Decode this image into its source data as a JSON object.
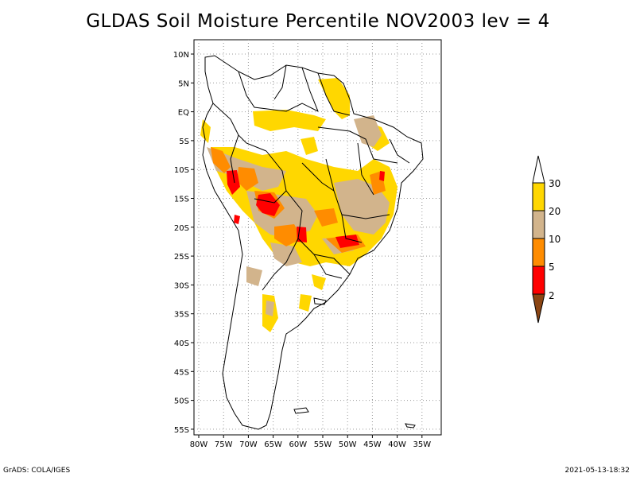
{
  "title": "GLDAS Soil Moisture Percentile NOV2003 lev = 4",
  "footer": {
    "left": "GrADS: COLA/IGES",
    "right": "2021-05-13-18:32"
  },
  "axes": {
    "lat_ticks": [
      "10N",
      "5N",
      "EQ",
      "5S",
      "10S",
      "15S",
      "20S",
      "25S",
      "30S",
      "35S",
      "40S",
      "45S",
      "50S",
      "55S"
    ],
    "lon_ticks": [
      "80W",
      "75W",
      "70W",
      "65W",
      "60W",
      "55W",
      "50W",
      "45W",
      "40W",
      "35W"
    ],
    "grid": "dotted"
  },
  "legend": {
    "labels": [
      "30",
      "20",
      "10",
      "5",
      "2"
    ],
    "colors": {
      "above_30": "#ffffff",
      "20_30": "#ffd700",
      "10_20": "#d2b48c",
      "5_10": "#ff8c00",
      "2_5": "#ff0000",
      "below_2": "#8b4513"
    }
  },
  "colors": {
    "land_outline": "#000000",
    "grid": "#999999"
  }
}
